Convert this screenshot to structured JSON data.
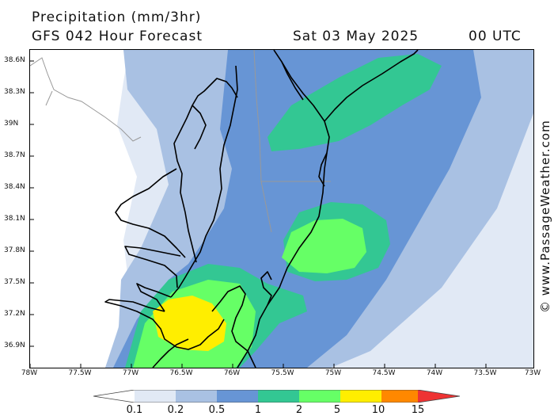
{
  "header": {
    "title": "Precipitation (mm/3hr)",
    "forecast": "GFS 042 Hour Forecast",
    "date": "Sat 03 May 2025",
    "time": "00 UTC"
  },
  "credit": "© www.PassageWeather.com",
  "map": {
    "lat_labels": [
      "38.6N",
      "38.3N",
      "39N",
      "38.7N",
      "38.4N",
      "38.1N",
      "37.8N",
      "37.5N",
      "37.2N",
      "36.9N"
    ],
    "lon_labels": [
      "78W",
      "77.5W",
      "77W",
      "76.5W",
      "76W",
      "75.5W",
      "75W",
      "74.5W",
      "74W",
      "73.5W",
      "73W"
    ]
  },
  "legend": {
    "labels": [
      "0.1",
      "0.2",
      "0.5",
      "1",
      "2",
      "5",
      "10",
      "15"
    ],
    "colors": [
      "#ffffff",
      "#e1e9f5",
      "#a9c1e3",
      "#6795d5",
      "#33c793",
      "#66ff66",
      "#ffee00",
      "#ff8800",
      "#ee3333"
    ]
  }
}
